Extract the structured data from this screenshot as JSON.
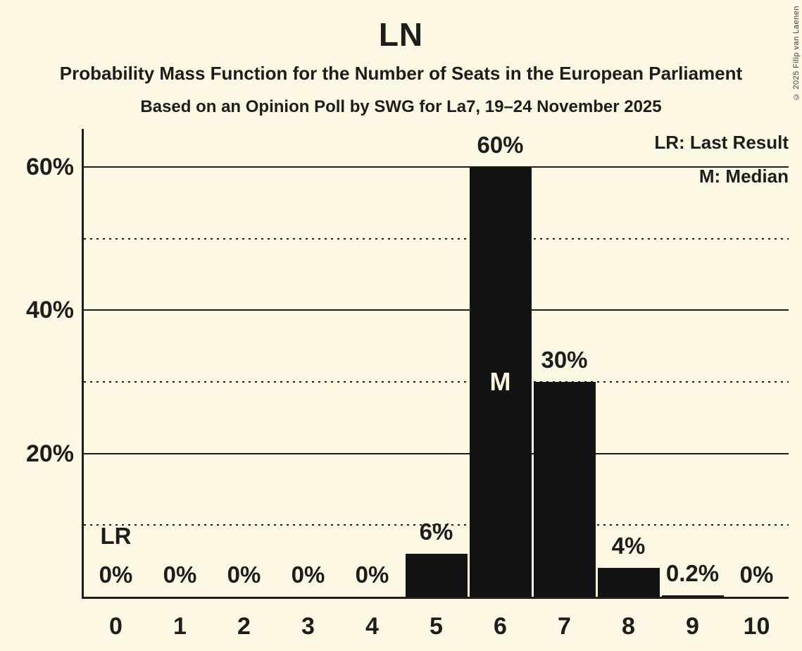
{
  "header": {
    "title": "LN",
    "subtitle1": "Probability Mass Function for the Number of Seats in the European Parliament",
    "subtitle2": "Based on an Opinion Poll by SWG for La7, 19–24 November 2025"
  },
  "legend": {
    "lr_label": "LR: Last Result",
    "m_label": "M: Median"
  },
  "copyright": "© 2025 Filip van Laenen",
  "colors": {
    "background": "#FCF8E3",
    "bar": "#131313",
    "text": "#1D1D1B"
  },
  "chart_data": {
    "type": "bar",
    "title": "LN",
    "xlabel": "",
    "ylabel": "",
    "categories": [
      "0",
      "1",
      "2",
      "3",
      "4",
      "5",
      "6",
      "7",
      "8",
      "9",
      "10"
    ],
    "values": [
      0,
      0,
      0,
      0,
      0,
      6,
      60,
      30,
      4,
      0.2,
      0
    ],
    "value_labels": [
      "0%",
      "0%",
      "0%",
      "0%",
      "0%",
      "6%",
      "60%",
      "30%",
      "4%",
      "0.2%",
      "0%"
    ],
    "ylim": [
      0,
      65.3
    ],
    "y_ticks": [
      {
        "value": 20,
        "label": "20%"
      },
      {
        "value": 40,
        "label": "40%"
      },
      {
        "value": 60,
        "label": "60%"
      }
    ],
    "gridlines": {
      "solid": [
        20,
        40,
        60
      ],
      "dotted": [
        10,
        30,
        50
      ]
    },
    "annotations": {
      "last_result": {
        "category": "0",
        "label": "LR"
      },
      "median": {
        "category": "6",
        "label": "M"
      }
    },
    "legend_position": "top-right"
  }
}
